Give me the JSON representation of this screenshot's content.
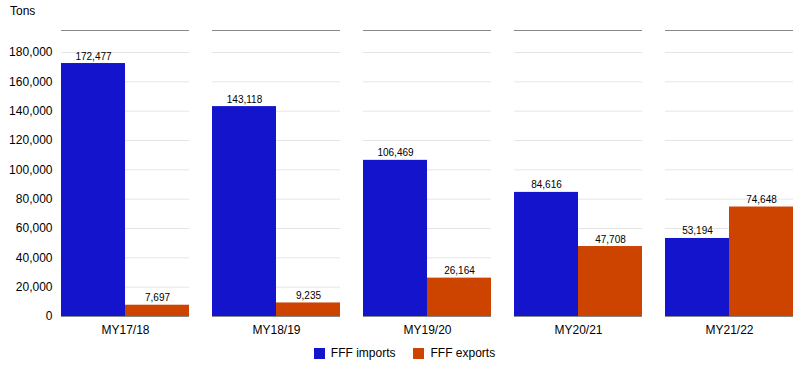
{
  "chart_data": {
    "type": "bar",
    "ylabel": "Tons",
    "categories": [
      "MY17/18",
      "MY18/19",
      "MY19/20",
      "MY20/21",
      "MY21/22"
    ],
    "series": [
      {
        "name": "FFF imports",
        "color": "#1414cc",
        "values": [
          172477,
          143118,
          106469,
          84616,
          53194
        ],
        "value_labels": [
          "172,477",
          "143,118",
          "106,469",
          "84,616",
          "53,194"
        ]
      },
      {
        "name": "FFF exports",
        "color": "#cc4400",
        "values": [
          7697,
          9235,
          26164,
          47708,
          74648
        ],
        "value_labels": [
          "7,697",
          "9,235",
          "26,164",
          "47,708",
          "74,648"
        ]
      }
    ],
    "ylim": [
      0,
      195000
    ],
    "yticks": [
      0,
      {
        "value": 20000,
        "label": "20,000"
      },
      {
        "value": 40000,
        "label": "40,000"
      },
      {
        "value": 60000,
        "label": "60,000"
      },
      {
        "value": 80000,
        "label": "80,000"
      },
      {
        "value": 100000,
        "label": "100,000"
      },
      {
        "value": 120000,
        "label": "120,000"
      },
      {
        "value": 140000,
        "label": "140,000"
      },
      {
        "value": 160000,
        "label": "160,000"
      },
      {
        "value": 180000,
        "label": "180,000"
      }
    ],
    "grid": true,
    "legend": "bottom",
    "data_labels": true
  }
}
